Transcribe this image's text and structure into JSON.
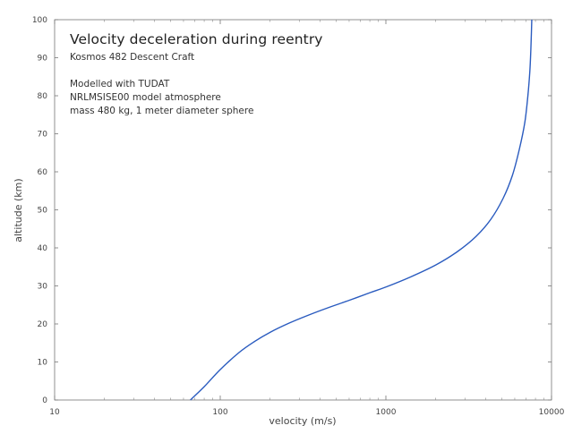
{
  "chart_data": {
    "type": "line",
    "title": "Velocity deceleration during reentry",
    "subtitle": "Kosmos 482 Descent Craft",
    "annotations": [
      "Modelled with TUDAT",
      "NRLMSISE00 model atmosphere",
      "mass 480 kg, 1 meter diameter sphere"
    ],
    "xlabel": "velocity (m/s)",
    "ylabel": "altitude (km)",
    "xscale": "log",
    "xlim": [
      10,
      10000
    ],
    "ylim": [
      0,
      100
    ],
    "x_ticks": [
      10,
      100,
      1000,
      10000
    ],
    "x_tick_labels": [
      "10",
      "100",
      "1000",
      "10000"
    ],
    "y_ticks": [
      0,
      10,
      20,
      30,
      40,
      50,
      60,
      70,
      80,
      90,
      100
    ],
    "y_tick_labels": [
      "0",
      "10",
      "20",
      "30",
      "40",
      "50",
      "60",
      "70",
      "80",
      "90",
      "100"
    ],
    "grid": false,
    "series": [
      {
        "color": "#2a5bbf",
        "x": [
          66,
          80,
          100,
          130,
          160,
          200,
          260,
          340,
          450,
          600,
          800,
          1000,
          1400,
          2000,
          2700,
          3500,
          4300,
          5100,
          5800,
          6400,
          6900,
          7200,
          7400,
          7500,
          7560,
          7600
        ],
        "y": [
          0,
          3.5,
          8,
          12.5,
          15.3,
          17.8,
          20.2,
          22.3,
          24.3,
          26.2,
          28.2,
          29.7,
          32.3,
          35.5,
          39,
          43,
          47.5,
          53,
          59,
          66,
          73,
          80,
          86.5,
          92,
          96.5,
          100
        ]
      }
    ]
  }
}
